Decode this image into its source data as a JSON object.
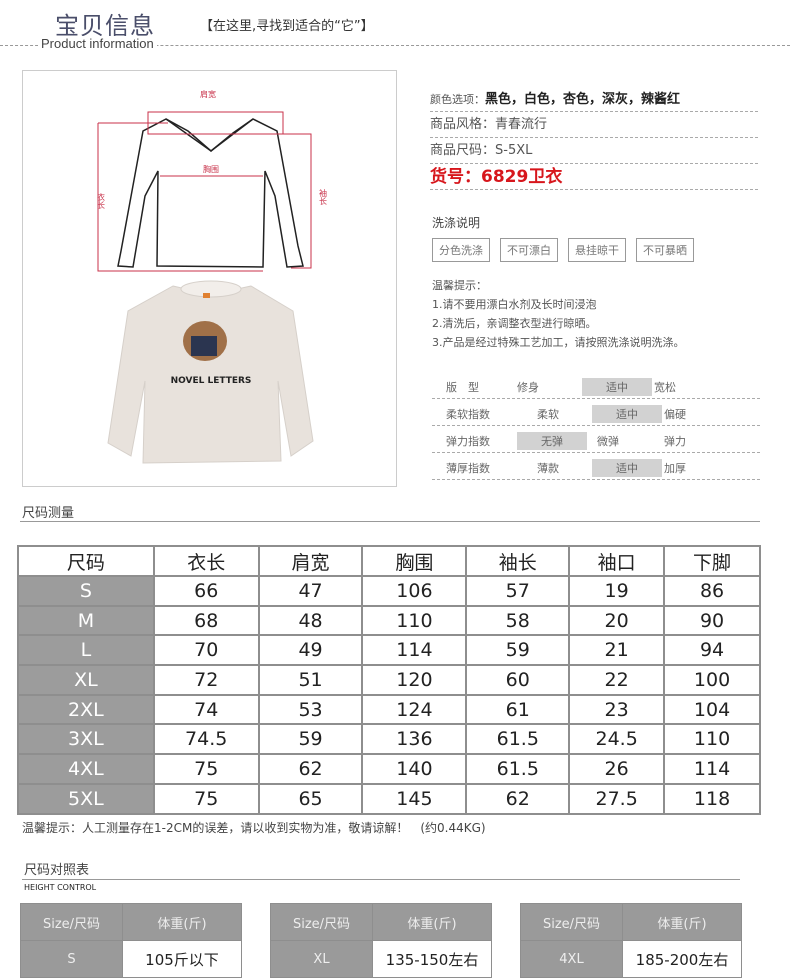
{
  "header": {
    "title": "宝贝信息",
    "subtitle": "【在这里,寻找到适合的“它”】",
    "english": "Product information"
  },
  "diagram": {
    "shoulder": "肩宽",
    "chest": "胸围",
    "length": "衣长",
    "sleeve": "袖长",
    "print_text": "NOVEL LETTERS"
  },
  "details": {
    "color_label": "颜色选项：",
    "color_value": "黑色，白色，杏色，深灰，辣酱红",
    "style": "商品风格：青春流行",
    "size_range": "商品尺码：S-5XL",
    "item_no": "货号：6829卫衣"
  },
  "wash": {
    "title": "洗涤说明",
    "items": [
      "分色洗涤",
      "不可漂白",
      "悬挂晾干",
      "不可暴晒"
    ]
  },
  "tips": {
    "title": "温馨提示：",
    "lines": [
      "1.请不要用漂白水剂及长时间浸泡",
      "2.清洗后，亲调整衣型进行晾晒。",
      "3.产品是经过特殊工艺加工，请按照洗涤说明洗涤。"
    ]
  },
  "properties": [
    {
      "label": "版　型",
      "options": [
        "修身",
        "适中",
        "宽松"
      ],
      "selected": 1
    },
    {
      "label": "柔软指数",
      "options": [
        "柔软",
        "适中",
        "偏硬"
      ],
      "selected": 1
    },
    {
      "label": "弹力指数",
      "options": [
        "无弹",
        "微弹",
        "弹力"
      ],
      "selected": 0
    },
    {
      "label": "薄厚指数",
      "options": [
        "薄款",
        "适中",
        "加厚"
      ],
      "selected": 1
    }
  ],
  "size_section": "尺码测量",
  "size_table": {
    "headers": [
      "尺码",
      "衣长",
      "肩宽",
      "胸围",
      "袖长",
      "袖口",
      "下脚"
    ],
    "rows": [
      [
        "S",
        "66",
        "47",
        "106",
        "57",
        "19",
        "86"
      ],
      [
        "M",
        "68",
        "48",
        "110",
        "58",
        "20",
        "90"
      ],
      [
        "L",
        "70",
        "49",
        "114",
        "59",
        "21",
        "94"
      ],
      [
        "XL",
        "72",
        "51",
        "120",
        "60",
        "22",
        "100"
      ],
      [
        "2XL",
        "74",
        "53",
        "124",
        "61",
        "23",
        "104"
      ],
      [
        "3XL",
        "74.5",
        "59",
        "136",
        "61.5",
        "24.5",
        "110"
      ],
      [
        "4XL",
        "75",
        "62",
        "140",
        "61.5",
        "26",
        "114"
      ],
      [
        "5XL",
        "75",
        "65",
        "145",
        "62",
        "27.5",
        "118"
      ]
    ]
  },
  "note": "温馨提示：人工测量存在1-2CM的误差，请以收到实物为准，敬请谅解！　(约0.44KG)",
  "ref": {
    "title": "尺码对照表",
    "subtitle": "HEIGHT CONTROL",
    "tables": [
      {
        "h1": "Size/尺码",
        "h2": "体重(斤)",
        "size": "S",
        "weight": "105斤以下"
      },
      {
        "h1": "Size/尺码",
        "h2": "体重(斤)",
        "size": "XL",
        "weight": "135-150左右"
      },
      {
        "h1": "Size/尺码",
        "h2": "体重(斤)",
        "size": "4XL",
        "weight": "185-200左右"
      }
    ]
  }
}
